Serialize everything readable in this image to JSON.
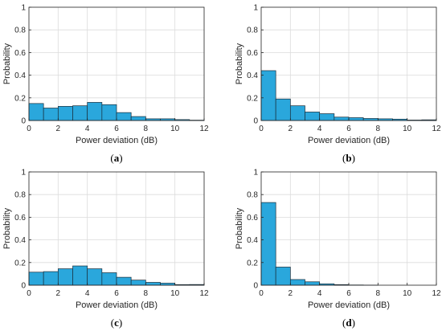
{
  "style": {
    "bar_fill": "#2aa7dc",
    "bar_edge": "#1a2e3b",
    "grid_color": "#dcdcdc",
    "axis_color": "#262626"
  },
  "chart_data": [
    {
      "type": "bar",
      "caption": {
        "open": "(",
        "letter": "a",
        "close": ")"
      },
      "xlabel": "Power deviation (dB)",
      "ylabel": "Probability",
      "xlim": [
        0,
        12
      ],
      "ylim": [
        0,
        1
      ],
      "xticks": [
        "0",
        "2",
        "4",
        "6",
        "8",
        "10",
        "12"
      ],
      "yticks": [
        "0",
        "0.2",
        "0.4",
        "0.6",
        "0.8",
        "1"
      ],
      "grid": true,
      "bin_edges": [
        0,
        1,
        2,
        3,
        4,
        5,
        6,
        7,
        8,
        9,
        10,
        11,
        12
      ],
      "values": [
        0.15,
        0.11,
        0.125,
        0.13,
        0.16,
        0.14,
        0.07,
        0.035,
        0.015,
        0.015,
        0.008,
        0.003
      ]
    },
    {
      "type": "bar",
      "caption": {
        "open": "(",
        "letter": "b",
        "close": ")"
      },
      "xlabel": "Power deviation (dB)",
      "ylabel": "Probability",
      "xlim": [
        0,
        12
      ],
      "ylim": [
        0,
        1
      ],
      "xticks": [
        "0",
        "2",
        "4",
        "6",
        "8",
        "10",
        "12"
      ],
      "yticks": [
        "0",
        "0.2",
        "0.4",
        "0.6",
        "0.8",
        "1"
      ],
      "grid": true,
      "bin_edges": [
        0,
        1,
        2,
        3,
        4,
        5,
        6,
        7,
        8,
        9,
        10,
        11,
        12
      ],
      "values": [
        0.44,
        0.19,
        0.13,
        0.075,
        0.06,
        0.03,
        0.025,
        0.018,
        0.015,
        0.012,
        0.004,
        0.006
      ]
    },
    {
      "type": "bar",
      "caption": {
        "open": "(",
        "letter": "c",
        "close": ")"
      },
      "xlabel": "Power deviation (dB)",
      "ylabel": "Probability",
      "xlim": [
        0,
        12
      ],
      "ylim": [
        0,
        1
      ],
      "xticks": [
        "0",
        "2",
        "4",
        "6",
        "8",
        "10",
        "12"
      ],
      "yticks": [
        "0",
        "0.2",
        "0.4",
        "0.6",
        "0.8",
        "1"
      ],
      "grid": true,
      "bin_edges": [
        0,
        1,
        2,
        3,
        4,
        5,
        6,
        7,
        8,
        9,
        10,
        11,
        12
      ],
      "values": [
        0.115,
        0.12,
        0.145,
        0.17,
        0.145,
        0.11,
        0.07,
        0.045,
        0.025,
        0.018,
        0.005,
        0.006
      ]
    },
    {
      "type": "bar",
      "caption": {
        "open": "(",
        "letter": "d",
        "close": ")"
      },
      "xlabel": "Power deviation (dB)",
      "ylabel": "Probability",
      "xlim": [
        0,
        12
      ],
      "ylim": [
        0,
        1
      ],
      "xticks": [
        "0",
        "2",
        "4",
        "6",
        "8",
        "10",
        "12"
      ],
      "yticks": [
        "0",
        "0.2",
        "0.4",
        "0.6",
        "0.8",
        "1"
      ],
      "grid": true,
      "bin_edges": [
        0,
        1,
        2,
        3,
        4,
        5,
        6,
        7,
        8,
        9,
        10,
        11,
        12
      ],
      "values": [
        0.73,
        0.16,
        0.05,
        0.03,
        0.012,
        0.005,
        0.002,
        0.001,
        0,
        0,
        0,
        0
      ]
    }
  ]
}
